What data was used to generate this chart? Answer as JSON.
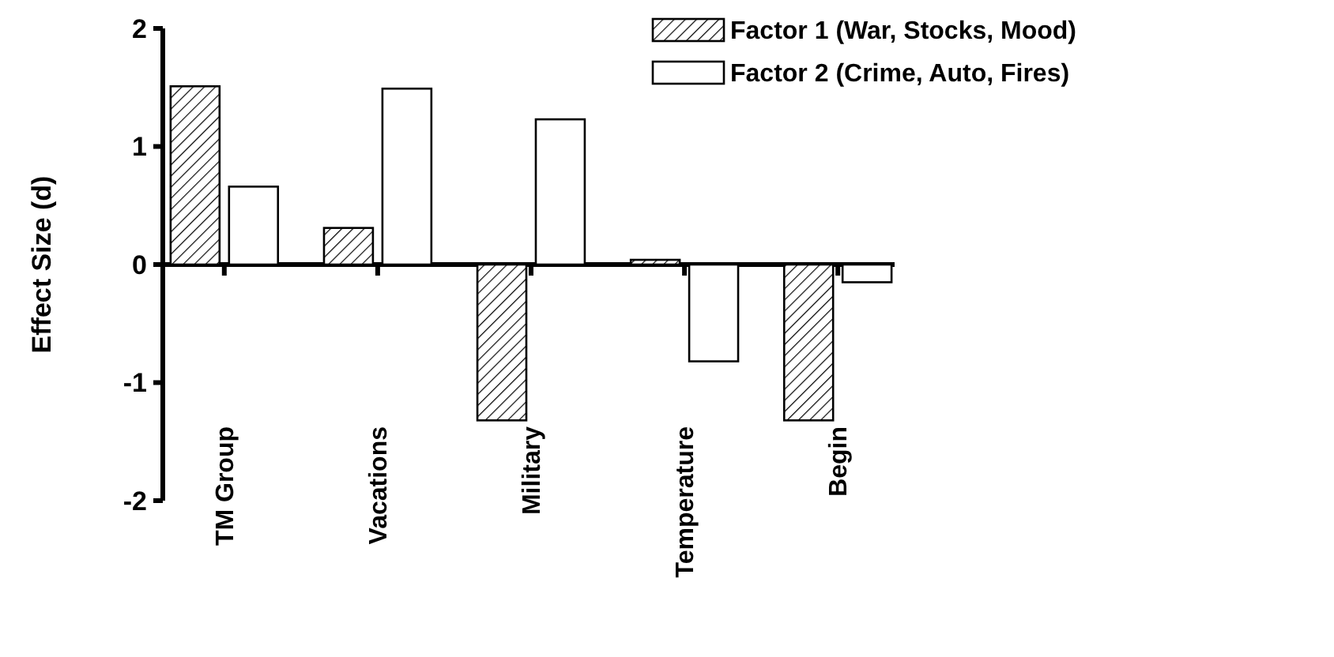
{
  "chart_data": {
    "type": "bar",
    "ylabel": "Effect Size (d)",
    "categories": [
      "TM Group",
      "Vacations",
      "Military",
      "Temperature",
      "Begin"
    ],
    "series": [
      {
        "name": "Factor 1 (War, Stocks, Mood)",
        "color": "#000000",
        "values": [
          1.51,
          0.31,
          -1.32,
          0.04,
          -1.32
        ]
      },
      {
        "name": "Factor 2 (Crime, Auto, Fires)",
        "color": "#ffffff",
        "values": [
          0.66,
          1.49,
          1.23,
          -0.82,
          -0.15
        ]
      }
    ],
    "ylim": [
      -2,
      2
    ],
    "yticks": [
      -2,
      -1,
      0,
      1,
      2
    ],
    "legend": "top right"
  }
}
